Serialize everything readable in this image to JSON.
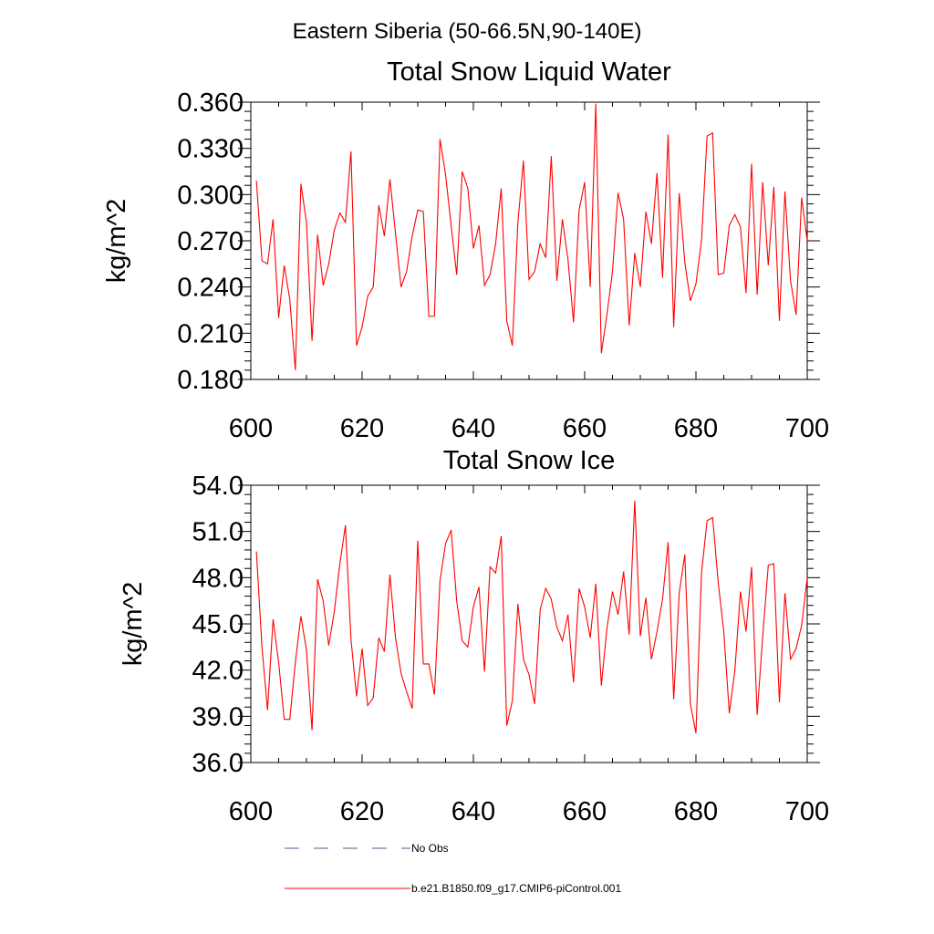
{
  "figure_title": "Eastern Siberia (50-66.5N,90-140E)",
  "chart_data": [
    {
      "type": "line",
      "title": "Total Snow Liquid Water",
      "xlabel": "",
      "ylabel": "kg/m^2",
      "xlim": [
        600,
        700
      ],
      "ylim": [
        0.18,
        0.36
      ],
      "xticks": [
        600,
        620,
        640,
        660,
        680,
        700
      ],
      "xtick_labels": [
        "600",
        "620",
        "640",
        "660",
        "680",
        "700"
      ],
      "yticks": [
        0.18,
        0.21,
        0.24,
        0.27,
        0.3,
        0.33,
        0.36
      ],
      "ytick_labels": [
        "0.180",
        "0.210",
        "0.240",
        "0.270",
        "0.300",
        "0.330",
        "0.360"
      ],
      "grid": false,
      "series": [
        {
          "name": "b.e21.B1850.f09_g17.CMIP6-piControl.001",
          "color": "#ff0000",
          "x": [
            601,
            602,
            603,
            604,
            605,
            606,
            607,
            608,
            609,
            610,
            611,
            612,
            613,
            614,
            615,
            616,
            617,
            618,
            619,
            620,
            621,
            622,
            623,
            624,
            625,
            626,
            627,
            628,
            629,
            630,
            631,
            632,
            633,
            634,
            635,
            636,
            637,
            638,
            639,
            640,
            641,
            642,
            643,
            644,
            645,
            646,
            647,
            648,
            649,
            650,
            651,
            652,
            653,
            654,
            655,
            656,
            657,
            658,
            659,
            660,
            661,
            662,
            663,
            664,
            665,
            666,
            667,
            668,
            669,
            670,
            671,
            672,
            673,
            674,
            675,
            676,
            677,
            678,
            679,
            680,
            681,
            682,
            683,
            684,
            685,
            686,
            687,
            688,
            689,
            690,
            691,
            692,
            693,
            694,
            695,
            696,
            697,
            698,
            699,
            700
          ],
          "y": [
            0.309,
            0.257,
            0.255,
            0.284,
            0.22,
            0.254,
            0.232,
            0.186,
            0.307,
            0.282,
            0.205,
            0.274,
            0.241,
            0.255,
            0.277,
            0.288,
            0.282,
            0.328,
            0.202,
            0.214,
            0.234,
            0.24,
            0.293,
            0.273,
            0.31,
            0.275,
            0.24,
            0.25,
            0.273,
            0.29,
            0.289,
            0.221,
            0.221,
            0.336,
            0.313,
            0.28,
            0.248,
            0.315,
            0.304,
            0.265,
            0.28,
            0.241,
            0.248,
            0.268,
            0.304,
            0.218,
            0.202,
            0.282,
            0.322,
            0.245,
            0.25,
            0.268,
            0.259,
            0.325,
            0.244,
            0.284,
            0.258,
            0.217,
            0.29,
            0.308,
            0.24,
            0.359,
            0.197,
            0.222,
            0.25,
            0.301,
            0.284,
            0.215,
            0.262,
            0.24,
            0.289,
            0.268,
            0.314,
            0.246,
            0.339,
            0.214,
            0.301,
            0.256,
            0.231,
            0.242,
            0.27,
            0.338,
            0.34,
            0.248,
            0.249,
            0.28,
            0.287,
            0.279,
            0.236,
            0.32,
            0.235,
            0.308,
            0.254,
            0.305,
            0.218,
            0.302,
            0.244,
            0.222,
            0.298,
            0.27
          ]
        }
      ]
    },
    {
      "type": "line",
      "title": "Total Snow Ice",
      "xlabel": "",
      "ylabel": "kg/m^2",
      "xlim": [
        600,
        700
      ],
      "ylim": [
        36.0,
        54.0
      ],
      "xticks": [
        600,
        620,
        640,
        660,
        680,
        700
      ],
      "xtick_labels": [
        "600",
        "620",
        "640",
        "660",
        "680",
        "700"
      ],
      "yticks": [
        36.0,
        39.0,
        42.0,
        45.0,
        48.0,
        51.0,
        54.0
      ],
      "ytick_labels": [
        "36.0",
        "39.0",
        "42.0",
        "45.0",
        "48.0",
        "51.0",
        "54.0"
      ],
      "grid": false,
      "series": [
        {
          "name": "b.e21.B1850.f09_g17.CMIP6-piControl.001",
          "color": "#ff0000",
          "x": [
            601,
            602,
            603,
            604,
            605,
            606,
            607,
            608,
            609,
            610,
            611,
            612,
            613,
            614,
            615,
            616,
            617,
            618,
            619,
            620,
            621,
            622,
            623,
            624,
            625,
            626,
            627,
            628,
            629,
            630,
            631,
            632,
            633,
            634,
            635,
            636,
            637,
            638,
            639,
            640,
            641,
            642,
            643,
            644,
            645,
            646,
            647,
            648,
            649,
            650,
            651,
            652,
            653,
            654,
            655,
            656,
            657,
            658,
            659,
            660,
            661,
            662,
            663,
            664,
            665,
            666,
            667,
            668,
            669,
            670,
            671,
            672,
            673,
            674,
            675,
            676,
            677,
            678,
            679,
            680,
            681,
            682,
            683,
            684,
            685,
            686,
            687,
            688,
            689,
            690,
            691,
            692,
            693,
            694,
            695,
            696,
            697,
            698,
            699,
            700
          ],
          "y": [
            49.7,
            43.5,
            39.4,
            45.3,
            42.5,
            38.8,
            38.8,
            42.5,
            45.5,
            43.3,
            38.1,
            47.9,
            46.5,
            43.6,
            45.8,
            48.9,
            51.4,
            44.0,
            40.3,
            43.4,
            39.7,
            40.2,
            44.1,
            43.2,
            48.2,
            44.1,
            41.8,
            40.6,
            39.5,
            50.4,
            42.4,
            42.4,
            40.4,
            47.8,
            50.2,
            51.1,
            46.5,
            43.9,
            43.5,
            46.1,
            47.4,
            41.9,
            48.7,
            48.3,
            50.7,
            38.4,
            40.0,
            46.3,
            42.7,
            41.7,
            39.8,
            45.9,
            47.3,
            46.6,
            44.8,
            43.9,
            45.6,
            41.2,
            47.3,
            46.1,
            44.1,
            47.6,
            41.0,
            44.7,
            47.1,
            45.6,
            48.4,
            44.3,
            53.0,
            44.2,
            46.7,
            42.7,
            44.5,
            46.6,
            50.3,
            40.1,
            47.0,
            49.5,
            39.8,
            37.9,
            48.3,
            51.7,
            51.9,
            47.7,
            44.5,
            39.2,
            42.0,
            47.1,
            44.5,
            48.7,
            39.1,
            44.2,
            48.8,
            48.9,
            39.9,
            47.0,
            42.7,
            43.4,
            44.9,
            48.0
          ]
        }
      ]
    }
  ],
  "legend": [
    {
      "label": "No Obs",
      "style": "dashed",
      "color": "#5a5a8c"
    },
    {
      "label": "b.e21.B1850.f09_g17.CMIP6-piControl.001",
      "style": "solid",
      "color": "#ff0000"
    }
  ]
}
